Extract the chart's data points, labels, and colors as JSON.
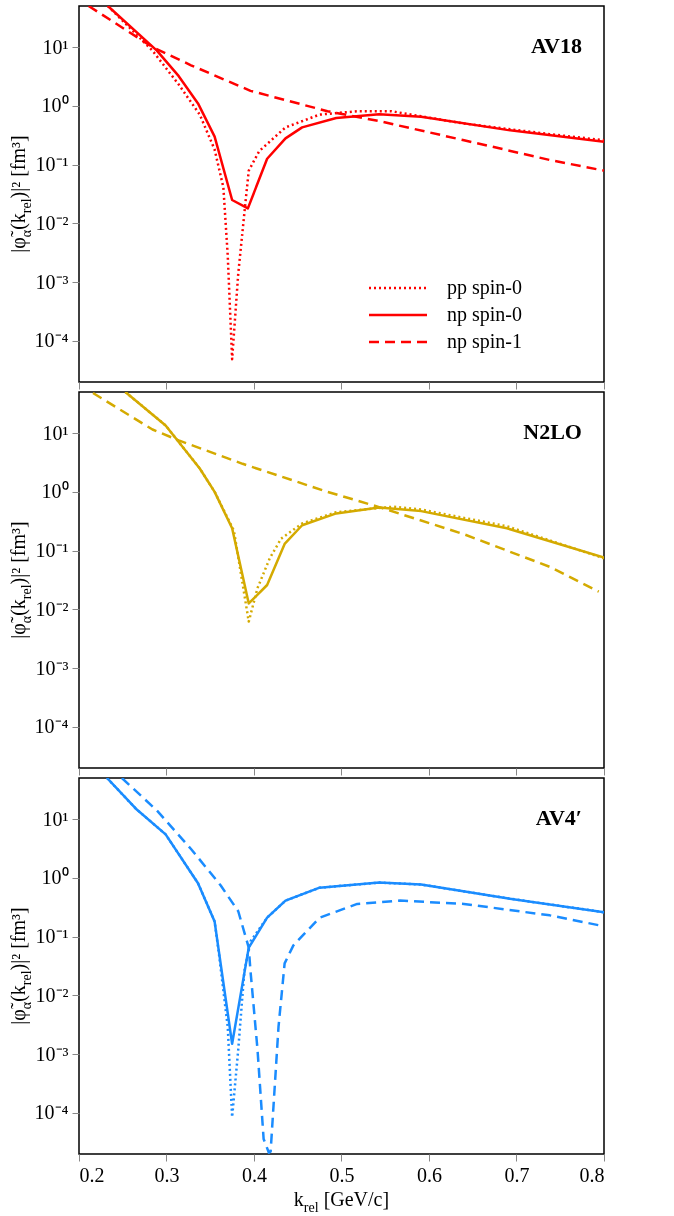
{
  "chart_data": [
    {
      "type": "line",
      "title": "AV18",
      "ylabel": "|φ̃$_{α}$(k$_{rel}$)|² [fm³]",
      "xlim": [
        0.2,
        0.8
      ],
      "xticks": [
        0.2,
        0.3,
        0.4,
        0.5,
        0.6,
        0.7,
        0.8
      ],
      "ylim": [
        2e-05,
        50
      ],
      "yticks": [
        {
          "value": 0.0001,
          "label": "10⁻⁴"
        },
        {
          "value": 0.001,
          "label": "10⁻³"
        },
        {
          "value": 0.01,
          "label": "10⁻²"
        },
        {
          "value": 0.1,
          "label": "10⁻¹"
        },
        {
          "value": 1,
          "label": "10⁰"
        },
        {
          "value": 10,
          "label": "10¹"
        }
      ],
      "log": "y",
      "grid": false,
      "legend": "bottom right",
      "tick_labels": "y",
      "series": [
        {
          "name": "pp spin-0",
          "color": "#ff0000",
          "line_style": "dotted",
          "x": [
            0.233,
            0.284,
            0.314,
            0.338,
            0.355,
            0.365,
            0.37,
            0.375,
            0.382,
            0.389,
            0.394,
            0.406,
            0.436,
            0.475,
            0.518,
            0.557,
            0.64,
            0.738,
            0.8
          ],
          "values": [
            50,
            8.7,
            2.3,
            0.71,
            0.18,
            0.041,
            0.0028,
            4.9e-05,
            0.0014,
            0.015,
            0.079,
            0.17,
            0.43,
            0.71,
            0.81,
            0.81,
            0.5,
            0.33,
            0.26
          ]
        },
        {
          "name": "np spin-0",
          "color": "#ff0000",
          "line_style": "solid",
          "x": [
            0.233,
            0.289,
            0.314,
            0.336,
            0.355,
            0.375,
            0.393,
            0.415,
            0.436,
            0.455,
            0.494,
            0.543,
            0.591,
            0.689,
            0.8
          ],
          "values": [
            50,
            8.7,
            3.2,
            1.1,
            0.3,
            0.025,
            0.018,
            0.126,
            0.28,
            0.43,
            0.62,
            0.72,
            0.65,
            0.39,
            0.245
          ]
        },
        {
          "name": "np spin-1",
          "color": "#ff0000",
          "line_style": "dashed",
          "x": [
            0.211,
            0.284,
            0.328,
            0.396,
            0.484,
            0.543,
            0.64,
            0.738,
            0.8
          ],
          "values": [
            50,
            10,
            4.9,
            1.8,
            0.81,
            0.55,
            0.26,
            0.12,
            0.079
          ]
        }
      ]
    },
    {
      "type": "line",
      "title": "N2LO",
      "ylabel": "|φ̃$_{α}$(k$_{rel}$)|² [fm³]",
      "xlim": [
        0.2,
        0.8
      ],
      "xticks": [
        0.2,
        0.3,
        0.4,
        0.5,
        0.6,
        0.7,
        0.8
      ],
      "ylim": [
        2e-05,
        50
      ],
      "yticks": [
        {
          "value": 0.0001,
          "label": "10⁻⁴"
        },
        {
          "value": 0.001,
          "label": "10⁻³"
        },
        {
          "value": 0.01,
          "label": "10⁻²"
        },
        {
          "value": 0.1,
          "label": "10⁻¹"
        },
        {
          "value": 1,
          "label": "10⁰"
        },
        {
          "value": 10,
          "label": "10¹"
        }
      ],
      "log": "y",
      "grid": false,
      "tick_labels": "y",
      "series": [
        {
          "color": "#d4aa00",
          "line_style": "dotted",
          "x": [
            0.253,
            0.299,
            0.338,
            0.355,
            0.377,
            0.387,
            0.394,
            0.404,
            0.418,
            0.431,
            0.455,
            0.494,
            0.56,
            0.591,
            0.689,
            0.8
          ],
          "values": [
            50,
            13.5,
            2.5,
            1.0,
            0.22,
            0.027,
            0.0062,
            0.023,
            0.074,
            0.16,
            0.29,
            0.45,
            0.56,
            0.5,
            0.26,
            0.074
          ]
        },
        {
          "color": "#d4aa00",
          "line_style": "solid",
          "x": [
            0.253,
            0.299,
            0.338,
            0.355,
            0.375,
            0.394,
            0.415,
            0.435,
            0.455,
            0.494,
            0.543,
            0.591,
            0.689,
            0.8
          ],
          "values": [
            50,
            13.5,
            2.5,
            1.0,
            0.24,
            0.0126,
            0.026,
            0.13,
            0.27,
            0.43,
            0.54,
            0.47,
            0.24,
            0.076
          ]
        },
        {
          "color": "#d4aa00",
          "line_style": "dashed",
          "x": [
            0.216,
            0.284,
            0.314,
            0.387,
            0.484,
            0.543,
            0.64,
            0.738,
            0.794
          ],
          "values": [
            48,
            11.5,
            7.5,
            3.0,
            1.0,
            0.55,
            0.19,
            0.053,
            0.02
          ]
        }
      ]
    },
    {
      "type": "line",
      "title": "AV4′",
      "xlabel": "k$_{rel}$ [GeV/c]",
      "ylabel": "|φ̃$_{α}$(k$_{rel}$)|² [fm³]",
      "xlim": [
        0.2,
        0.8
      ],
      "xticks": [
        0.2,
        0.3,
        0.4,
        0.5,
        0.6,
        0.7,
        0.8
      ],
      "ylim": [
        2e-05,
        50
      ],
      "yticks": [
        {
          "value": 0.0001,
          "label": "10⁻⁴"
        },
        {
          "value": 0.001,
          "label": "10⁻³"
        },
        {
          "value": 0.01,
          "label": "10⁻²"
        },
        {
          "value": 0.1,
          "label": "10⁻¹"
        },
        {
          "value": 1,
          "label": "10⁰"
        },
        {
          "value": 10,
          "label": "10¹"
        }
      ],
      "log": "y",
      "grid": false,
      "series": [
        {
          "color": "#1a8cff",
          "line_style": "dotted",
          "x": [
            0.232,
            0.265,
            0.299,
            0.336,
            0.355,
            0.36,
            0.37,
            0.375,
            0.382,
            0.389,
            0.396,
            0.415,
            0.436,
            0.475,
            0.543,
            0.591,
            0.689,
            0.8
          ],
          "values": [
            50,
            15,
            5.5,
            0.81,
            0.18,
            0.05,
            0.0029,
            8.5e-05,
            0.0012,
            0.026,
            0.083,
            0.21,
            0.41,
            0.68,
            0.83,
            0.77,
            0.45,
            0.26
          ]
        },
        {
          "color": "#1a8cff",
          "line_style": "solid",
          "x": [
            0.232,
            0.265,
            0.299,
            0.336,
            0.355,
            0.375,
            0.394,
            0.415,
            0.436,
            0.475,
            0.543,
            0.591,
            0.689,
            0.8
          ],
          "values": [
            50,
            15,
            5.5,
            0.81,
            0.18,
            0.0015,
            0.065,
            0.21,
            0.41,
            0.68,
            0.83,
            0.77,
            0.45,
            0.26
          ]
        },
        {
          "color": "#1a8cff",
          "line_style": "dashed",
          "x": [
            0.249,
            0.289,
            0.328,
            0.362,
            0.382,
            0.394,
            0.396,
            0.404,
            0.411,
            0.417,
            0.419,
            0.428,
            0.435,
            0.445,
            0.475,
            0.518,
            0.567,
            0.64,
            0.738,
            0.8
          ],
          "values": [
            50,
            14,
            3.1,
            0.74,
            0.27,
            0.065,
            0.026,
            0.0012,
            3.6e-05,
            2.1e-05,
            2.2e-05,
            0.0029,
            0.035,
            0.071,
            0.21,
            0.36,
            0.41,
            0.36,
            0.23,
            0.15
          ]
        }
      ]
    }
  ]
}
